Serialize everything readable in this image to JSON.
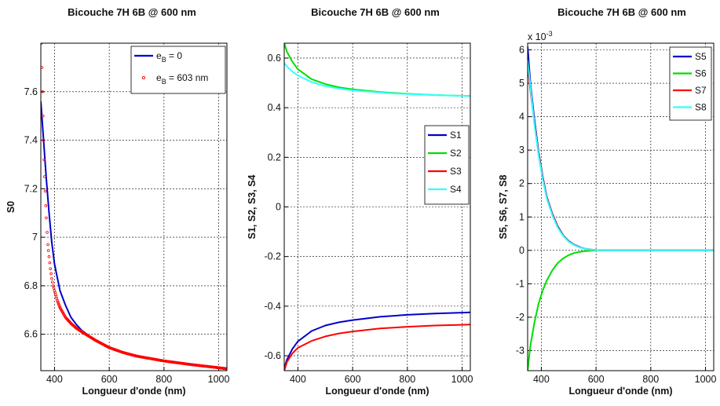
{
  "chart_data": [
    {
      "type": "line",
      "title": "Bicouche 7H 6B @ 600 nm",
      "xlabel": "Longueur d'onde (nm)",
      "ylabel": "S0",
      "xlim": [
        350,
        1030
      ],
      "ylim": [
        6.45,
        7.8
      ],
      "xticks": [
        400,
        600,
        800,
        1000
      ],
      "yticks": [
        6.6,
        6.8,
        7.0,
        7.2,
        7.4,
        7.6
      ],
      "ytick_labels": [
        "6.6",
        "6.8",
        "7",
        "7.2",
        "7.4",
        "7.6"
      ],
      "grid": true,
      "legend_position": "top-right",
      "series": [
        {
          "legend_base": "e",
          "legend_sub": "B",
          "legend_rest": " = 0",
          "color": "#0000cc",
          "style": "line",
          "x": [
            350,
            360,
            370,
            380,
            390,
            400,
            420,
            440,
            460,
            480,
            500,
            550,
            600,
            650,
            700,
            800,
            900,
            1000,
            1030
          ],
          "y": [
            7.56,
            7.4,
            7.24,
            7.1,
            6.98,
            6.89,
            6.78,
            6.72,
            6.67,
            6.64,
            6.615,
            6.575,
            6.545,
            6.525,
            6.51,
            6.49,
            6.475,
            6.462,
            6.458
          ]
        },
        {
          "legend_base": "e",
          "legend_sub": "B",
          "legend_rest": " = 603 nm",
          "color": "#ff0000",
          "style": "markers",
          "x": [
            352,
            354,
            356,
            358,
            360,
            362,
            364,
            366,
            368,
            370,
            373,
            376,
            380,
            385,
            390,
            395,
            400,
            410,
            420,
            440,
            460,
            480,
            500,
            550,
            600,
            650,
            700,
            800,
            900,
            1000,
            1030
          ],
          "y": [
            7.8,
            7.7,
            7.6,
            7.5,
            7.4,
            7.32,
            7.25,
            7.19,
            7.13,
            7.08,
            7.02,
            6.97,
            6.92,
            6.87,
            6.83,
            6.8,
            6.78,
            6.74,
            6.71,
            6.67,
            6.645,
            6.625,
            6.61,
            6.575,
            6.545,
            6.525,
            6.51,
            6.49,
            6.475,
            6.462,
            6.458
          ]
        }
      ]
    },
    {
      "type": "line",
      "title": "Bicouche 7H 6B @ 600 nm",
      "xlabel": "Longueur d'onde (nm)",
      "ylabel": "S1, S2, S3, S4",
      "xlim": [
        350,
        1030
      ],
      "ylim": [
        -0.66,
        0.66
      ],
      "xticks": [
        400,
        600,
        800,
        1000
      ],
      "yticks": [
        -0.6,
        -0.4,
        -0.2,
        0,
        0.2,
        0.4,
        0.6
      ],
      "ytick_labels": [
        "-0.6",
        "-0.4",
        "-0.2",
        "0",
        "0.2",
        "0.4",
        "0.6"
      ],
      "grid": true,
      "legend_position": "center-right",
      "series": [
        {
          "name": "S1",
          "color": "#0000cc",
          "style": "line",
          "x": [
            350,
            360,
            380,
            400,
            450,
            500,
            550,
            600,
            700,
            800,
            900,
            1000,
            1030
          ],
          "y": [
            -0.65,
            -0.615,
            -0.572,
            -0.542,
            -0.5,
            -0.478,
            -0.465,
            -0.456,
            -0.443,
            -0.435,
            -0.43,
            -0.426,
            -0.425
          ]
        },
        {
          "name": "S2",
          "color": "#00dd00",
          "style": "line",
          "x": [
            350,
            360,
            380,
            400,
            450,
            500,
            550,
            600,
            700,
            800,
            900,
            1000,
            1030
          ],
          "y": [
            0.66,
            0.625,
            0.585,
            0.555,
            0.515,
            0.495,
            0.482,
            0.474,
            0.463,
            0.456,
            0.451,
            0.448,
            0.447
          ]
        },
        {
          "name": "S3",
          "color": "#ff0000",
          "style": "line",
          "x": [
            350,
            360,
            380,
            400,
            450,
            500,
            550,
            600,
            700,
            800,
            900,
            1000,
            1030
          ],
          "y": [
            -0.66,
            -0.625,
            -0.59,
            -0.568,
            -0.54,
            -0.522,
            -0.51,
            -0.502,
            -0.49,
            -0.483,
            -0.478,
            -0.475,
            -0.474
          ]
        },
        {
          "name": "S4",
          "color": "#33ffff",
          "style": "line",
          "x": [
            350,
            360,
            380,
            400,
            450,
            500,
            550,
            600,
            700,
            800,
            900,
            1000,
            1030
          ],
          "y": [
            0.58,
            0.566,
            0.545,
            0.53,
            0.503,
            0.487,
            0.477,
            0.47,
            0.461,
            0.455,
            0.451,
            0.448,
            0.447
          ]
        }
      ]
    },
    {
      "type": "line",
      "title": "Bicouche 7H 6B @ 600 nm",
      "xlabel": "Longueur d'onde (nm)",
      "ylabel": "S5, S6, S7, S8",
      "axis_multiplier_base": "x 10",
      "axis_multiplier_exp": "-3",
      "xlim": [
        350,
        1030
      ],
      "ylim": [
        -3.6,
        6.2
      ],
      "xticks": [
        400,
        600,
        800,
        1000
      ],
      "yticks": [
        -3,
        -2,
        -1,
        0,
        1,
        2,
        3,
        4,
        5,
        6
      ],
      "ytick_labels": [
        "-3",
        "-2",
        "-1",
        "0",
        "1",
        "2",
        "3",
        "4",
        "5",
        "6"
      ],
      "grid": true,
      "legend_position": "top-right",
      "series": [
        {
          "name": "S5",
          "color": "#0000cc",
          "style": "line",
          "x": [
            350,
            360,
            375,
            390,
            405,
            420,
            440,
            460,
            480,
            500,
            520,
            540,
            560,
            580,
            600,
            620,
            650,
            700,
            800,
            900,
            1030
          ],
          "y": [
            6.1,
            5.0,
            3.9,
            2.95,
            2.2,
            1.6,
            1.1,
            0.72,
            0.45,
            0.28,
            0.17,
            0.1,
            0.05,
            0.025,
            0.01,
            0.0,
            0.0,
            0.0,
            0.0,
            0.0,
            0.0
          ]
        },
        {
          "name": "S6",
          "color": "#00dd00",
          "style": "line",
          "x": [
            350,
            360,
            375,
            390,
            405,
            420,
            440,
            460,
            480,
            500,
            520,
            540,
            560,
            580,
            600,
            620,
            650,
            700,
            800,
            900,
            1030
          ],
          "y": [
            -3.6,
            -2.85,
            -2.15,
            -1.6,
            -1.2,
            -0.9,
            -0.6,
            -0.38,
            -0.24,
            -0.14,
            -0.08,
            -0.045,
            -0.02,
            -0.01,
            0.0,
            0.0,
            0.0,
            0.0,
            0.0,
            0.0,
            0.0
          ]
        },
        {
          "name": "S7",
          "color": "#ff0000",
          "style": "line",
          "x": [
            352,
            360,
            375,
            390,
            405,
            420,
            440,
            460,
            480,
            500,
            520,
            540,
            560,
            580,
            600,
            620,
            650,
            700,
            800,
            900,
            1030
          ],
          "y": [
            5.4,
            4.8,
            3.8,
            2.9,
            2.15,
            1.58,
            1.08,
            0.7,
            0.44,
            0.27,
            0.16,
            0.09,
            0.05,
            0.02,
            0.01,
            0.0,
            0.0,
            0.0,
            0.0,
            0.0,
            0.0
          ]
        },
        {
          "name": "S8",
          "color": "#33ffff",
          "style": "line",
          "x": [
            350,
            360,
            375,
            390,
            405,
            420,
            440,
            460,
            480,
            500,
            520,
            540,
            560,
            580,
            600,
            620,
            650,
            700,
            800,
            900,
            1030
          ],
          "y": [
            5.7,
            4.9,
            3.75,
            2.85,
            2.12,
            1.55,
            1.05,
            0.68,
            0.43,
            0.26,
            0.16,
            0.09,
            0.05,
            0.02,
            0.01,
            0.0,
            0.0,
            0.0,
            0.0,
            0.0,
            0.0
          ]
        }
      ]
    }
  ]
}
